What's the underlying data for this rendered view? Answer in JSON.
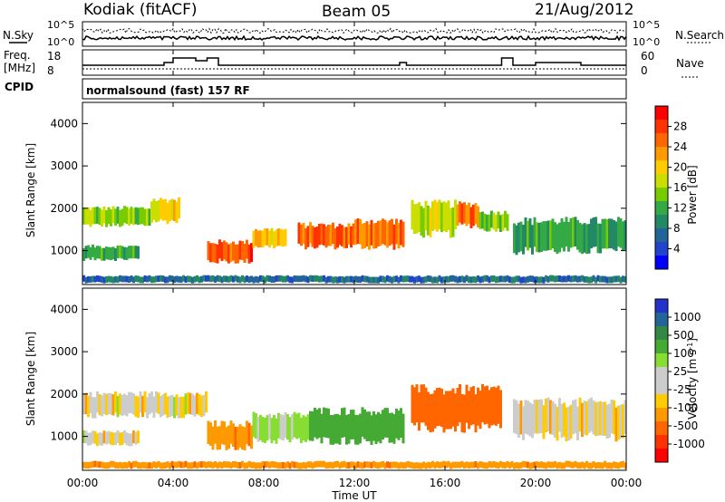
{
  "header": {
    "station": "Kodiak (fitACF)",
    "beam": "Beam 05",
    "date": "21/Aug/2012"
  },
  "sky_panel": {
    "left_label": "N.Sky",
    "right_label": "N.Search",
    "left_ticks": [
      "10^5",
      "10^0"
    ],
    "right_ticks": [
      "10^5",
      "10^0"
    ]
  },
  "freq_panel": {
    "left_label_1": "Freq.",
    "left_label_2": "[MHz]",
    "left_ticks": [
      "18",
      "8"
    ],
    "right_label": "Nave",
    "right_ticks": [
      "60",
      "0"
    ]
  },
  "cpid_panel": {
    "label": "CPID",
    "text": "normalsound (fast) 157 RF"
  },
  "time_axis": {
    "title": "Time UT",
    "ticks": [
      "00:00",
      "04:00",
      "08:00",
      "12:00",
      "16:00",
      "20:00",
      "00:00"
    ]
  },
  "power_colorbar": {
    "title": "Power [dB]",
    "ticks": [
      "28",
      "24",
      "20",
      "16",
      "12",
      "8",
      "4"
    ],
    "colors": [
      "#ff0000",
      "#ff3300",
      "#ff6600",
      "#ff9900",
      "#ffcc00",
      "#ccdd00",
      "#77cc00",
      "#33aa44",
      "#228866",
      "#226699",
      "#2244cc",
      "#0000ff"
    ]
  },
  "velocity_colorbar": {
    "title": "Velocity [m s",
    "title_sup": "-1",
    "title_end": "]",
    "ticks": [
      "1000",
      "500",
      "100",
      "25",
      "-25",
      "-100",
      "-500",
      "-1000"
    ],
    "colors": [
      "#2233cc",
      "#226699",
      "#338844",
      "#44aa33",
      "#88dd33",
      "#cccccc",
      "#cccccc",
      "#ffcc00",
      "#ff9900",
      "#ff6600",
      "#ff3300",
      "#ff0000"
    ]
  },
  "chart_data": [
    {
      "type": "heatmap",
      "title": "Power",
      "ylabel": "Slant Range [km]",
      "xlabel": "Time UT",
      "ylim": [
        200,
        4500
      ],
      "yticks": [
        1000,
        2000,
        3000,
        4000
      ],
      "xlim": [
        0,
        24
      ],
      "colorbar_label": "Power [dB]",
      "colorbar_ticks": [
        4,
        8,
        12,
        16,
        20,
        24,
        28
      ],
      "regions": [
        {
          "t0": 0.0,
          "t1": 3.0,
          "r0": 1600,
          "r1": 2000,
          "value": 14
        },
        {
          "t0": 3.0,
          "t1": 4.3,
          "r0": 1700,
          "r1": 2200,
          "value": 18
        },
        {
          "t0": 0.0,
          "t1": 2.5,
          "r0": 800,
          "r1": 1100,
          "value": 10
        },
        {
          "t0": 5.5,
          "t1": 7.5,
          "r0": 750,
          "r1": 1200,
          "value": 26
        },
        {
          "t0": 7.5,
          "t1": 9.0,
          "r0": 1100,
          "r1": 1500,
          "value": 20
        },
        {
          "t0": 9.5,
          "t1": 12.0,
          "r0": 1100,
          "r1": 1600,
          "value": 24
        },
        {
          "t0": 12.0,
          "t1": 14.2,
          "r0": 1100,
          "r1": 1700,
          "value": 24
        },
        {
          "t0": 14.5,
          "t1": 16.5,
          "r0": 1400,
          "r1": 2100,
          "value": 16
        },
        {
          "t0": 16.5,
          "t1": 17.5,
          "r0": 1600,
          "r1": 2100,
          "value": 24
        },
        {
          "t0": 17.5,
          "t1": 18.8,
          "r0": 1500,
          "r1": 1900,
          "value": 14
        },
        {
          "t0": 19.0,
          "t1": 24.0,
          "r0": 1000,
          "r1": 1700,
          "value": 10
        },
        {
          "t0": 0.0,
          "t1": 24.0,
          "r0": 250,
          "r1": 400,
          "value": 6
        }
      ]
    },
    {
      "type": "heatmap",
      "title": "Velocity",
      "ylabel": "Slant Range [km]",
      "xlabel": "Time UT",
      "ylim": [
        200,
        4500
      ],
      "yticks": [
        1000,
        2000,
        3000,
        4000
      ],
      "xlim": [
        0,
        24
      ],
      "colorbar_label": "Velocity [m s-1]",
      "colorbar_ticks": [
        -1000,
        -500,
        -100,
        -25,
        25,
        100,
        500,
        1000
      ],
      "regions": [
        {
          "t0": 0.0,
          "t1": 5.5,
          "r0": 1500,
          "r1": 2000,
          "value": 0
        },
        {
          "t0": 0.0,
          "t1": 2.5,
          "r0": 800,
          "r1": 1100,
          "value": 0
        },
        {
          "t0": 5.5,
          "t1": 7.5,
          "r0": 750,
          "r1": 1300,
          "value": -150
        },
        {
          "t0": 7.5,
          "t1": 10.0,
          "r0": 900,
          "r1": 1500,
          "value": 80
        },
        {
          "t0": 10.0,
          "t1": 14.2,
          "r0": 900,
          "r1": 1600,
          "value": 300
        },
        {
          "t0": 14.5,
          "t1": 18.5,
          "r0": 1200,
          "r1": 2100,
          "value": -300
        },
        {
          "t0": 19.0,
          "t1": 24.0,
          "r0": 1000,
          "r1": 1800,
          "value": 0
        },
        {
          "t0": 0.0,
          "t1": 24.0,
          "r0": 250,
          "r1": 400,
          "value": -150
        }
      ]
    }
  ]
}
